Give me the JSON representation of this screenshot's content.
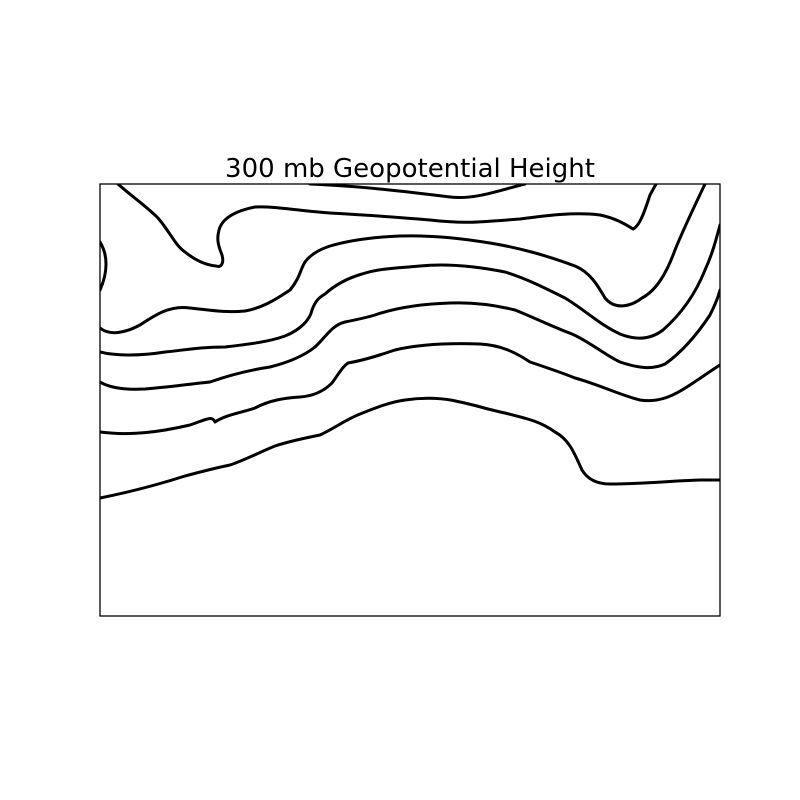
{
  "title": "300 mb Geopotential Height",
  "colors": {
    "background": "#ffffff",
    "contour": "#000000",
    "frame": "#000000",
    "title": "#000000"
  },
  "contour_count": 6
}
